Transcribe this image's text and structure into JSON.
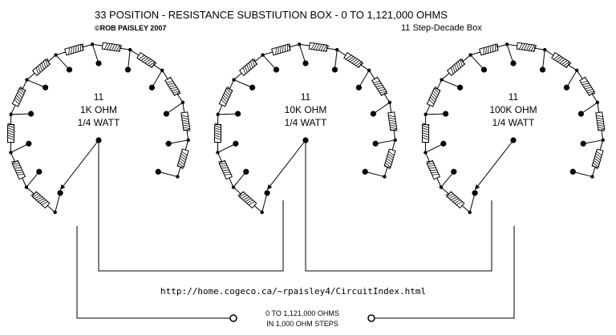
{
  "title": "33 POSITION - RESISTANCE SUBSTIUTION BOX   -  0  TO  1,121,000 OHMS",
  "copyright": "©ROB PAISLEY 2007",
  "subtitle": "11 Step-Decade Box",
  "url": "http://home.cogeco.ca/~rpaisley4/CircuitIndex.html",
  "footer_line1": "0  TO  1,121,000 OHMS",
  "footer_line2": "IN 1,000 OHM STEPS",
  "decades": [
    {
      "count": "11",
      "value": "1K OHM",
      "power": "1/4 WATT"
    },
    {
      "count": "11",
      "value": "10K OHM",
      "power": "1/4 WATT"
    },
    {
      "count": "11",
      "value": "100K OHM",
      "power": "1/4 WATT"
    }
  ],
  "colors": {
    "ink": "#000000",
    "resistor_fill": "#ffffff",
    "resistor_hatch": "#000000",
    "subtitle": "#8a8a8a",
    "url": "#8a8a8a"
  }
}
